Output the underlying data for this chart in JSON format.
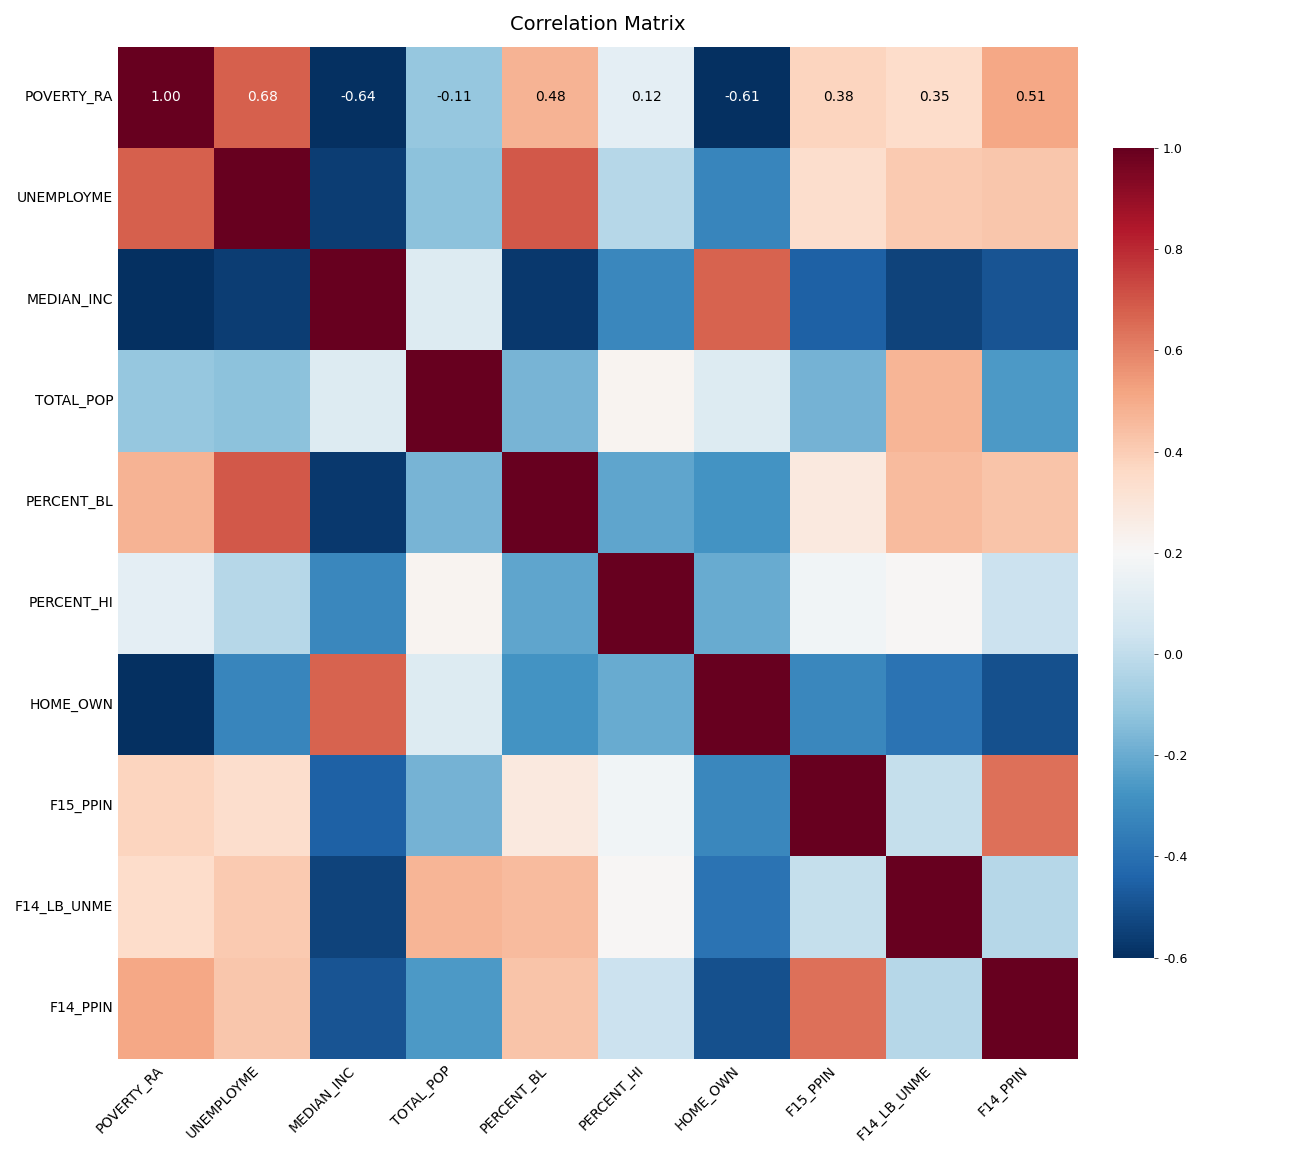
{
  "labels": [
    "POVERTY_RA",
    "UNEMPLOYME",
    "MEDIAN_INC",
    "TOTAL_POP",
    "PERCENT_BL",
    "PERCENT_HI",
    "HOME_OWN",
    "F15_PPIN",
    "F14_LB_UNME",
    "F14_PPIN"
  ],
  "matrix": [
    [
      1.0,
      0.68,
      -0.64,
      -0.11,
      0.48,
      0.12,
      -0.61,
      0.38,
      0.35,
      0.51
    ],
    [
      0.68,
      1.0,
      -0.56,
      -0.13,
      0.7,
      -0.03,
      -0.33,
      0.34,
      0.41,
      0.42
    ],
    [
      -0.64,
      -0.56,
      1.0,
      0.09,
      -0.57,
      -0.32,
      0.67,
      -0.45,
      -0.54,
      -0.49
    ],
    [
      -0.11,
      -0.13,
      0.09,
      1.0,
      -0.17,
      0.22,
      0.09,
      -0.18,
      0.47,
      -0.26
    ],
    [
      0.48,
      0.7,
      -0.57,
      -0.17,
      1.0,
      -0.22,
      -0.28,
      0.28,
      0.45,
      0.43
    ],
    [
      0.12,
      -0.03,
      -0.32,
      0.22,
      -0.22,
      1.0,
      -0.2,
      0.17,
      0.21,
      0.03
    ],
    [
      -0.61,
      -0.33,
      0.67,
      0.09,
      -0.28,
      -0.2,
      1.0,
      -0.32,
      -0.39,
      -0.5
    ],
    [
      0.38,
      0.34,
      -0.45,
      -0.18,
      0.28,
      0.17,
      -0.32,
      1.0,
      0.01,
      0.64
    ],
    [
      0.35,
      0.41,
      -0.54,
      0.47,
      0.45,
      0.21,
      -0.39,
      0.01,
      1.0,
      -0.03
    ],
    [
      0.51,
      0.42,
      -0.49,
      -0.26,
      0.43,
      0.03,
      -0.5,
      0.64,
      -0.03,
      1.0
    ]
  ],
  "title": "Correlation Matrix",
  "title_fontsize": 14,
  "label_fontsize": 10,
  "annot_fontsize": 10,
  "cmap": "RdBu_r",
  "vmin": -0.6,
  "vmax": 1.0,
  "colorbar_ticks": [
    1.0,
    0.8,
    0.6,
    0.4,
    0.2,
    0.0,
    -0.2,
    -0.4,
    -0.6
  ],
  "background_color": "#ffffff",
  "annot_white_threshold": 0.55
}
